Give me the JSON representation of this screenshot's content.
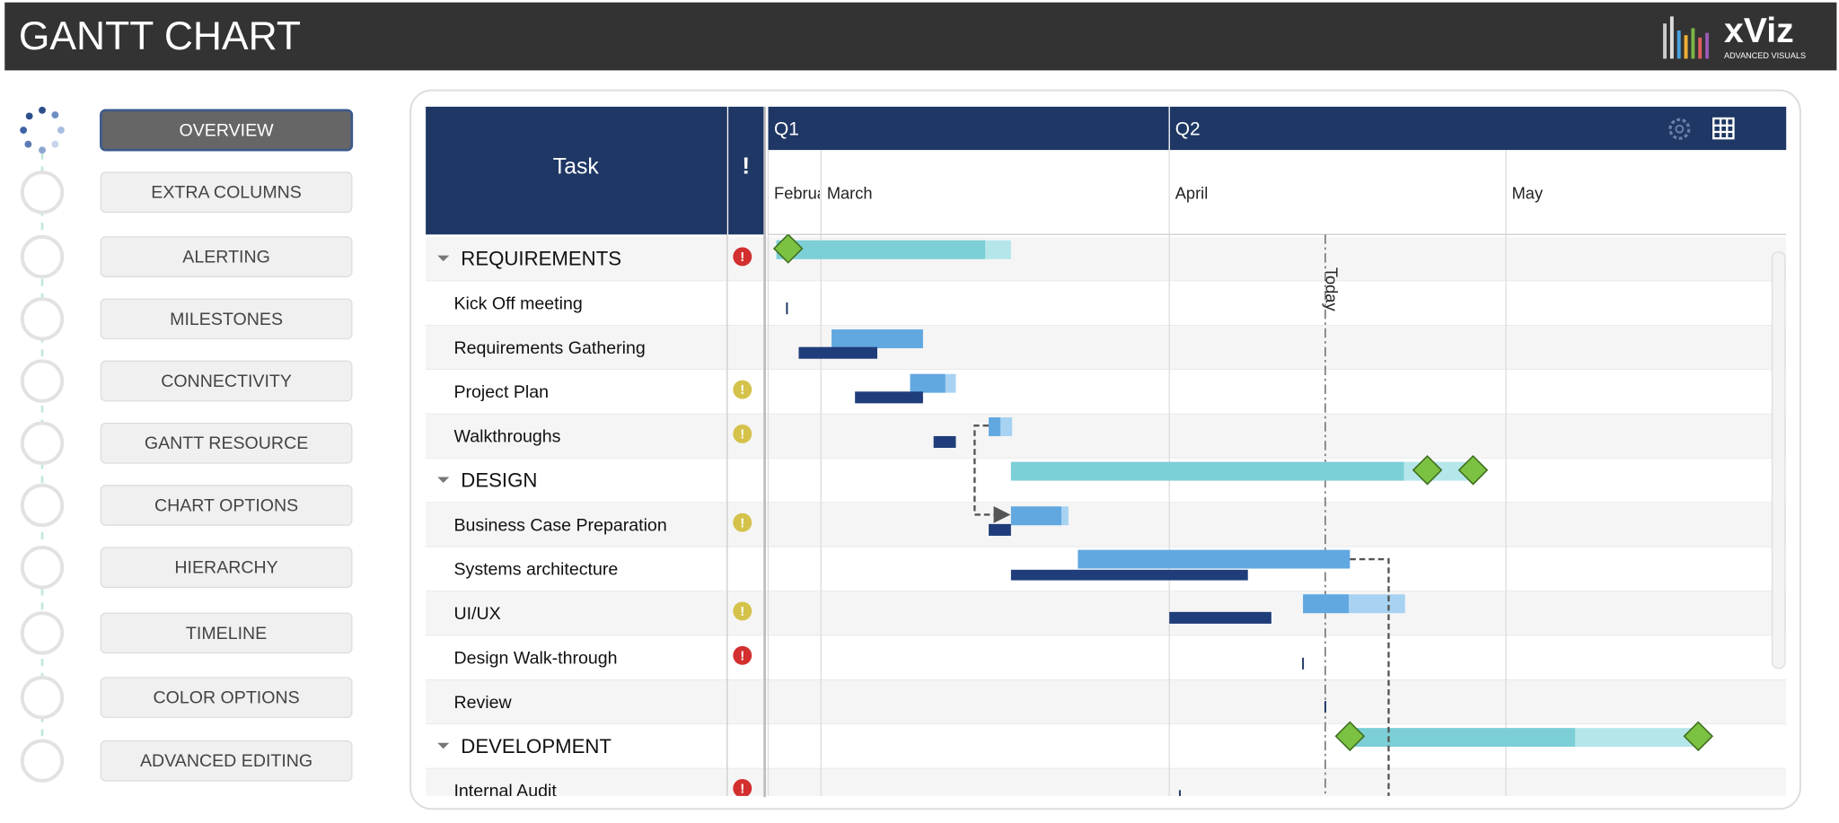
{
  "header": {
    "title": "GANTT CHART",
    "logo": "xViz",
    "logo_tagline": "ADVANCED VISUALS"
  },
  "nav": [
    "OVERVIEW",
    "EXTRA COLUMNS",
    "ALERTING",
    "MILESTONES",
    "CONNECTIVITY",
    "GANTT RESOURCE",
    "CHART OPTIONS",
    "HIERARCHY",
    "TIMELINE",
    "COLOR OPTIONS",
    "ADVANCED EDITING"
  ],
  "table": {
    "header": {
      "task": "Task",
      "alert": "!"
    },
    "rows": [
      {
        "task": "REQUIREMENTS"
      },
      {
        "task": "Kick Off meeting"
      },
      {
        "task": "Requirements Gathering"
      },
      {
        "task": "Project Plan"
      },
      {
        "task": "Walkthroughs"
      },
      {
        "task": "DESIGN"
      },
      {
        "task": "Business Case Preparation"
      },
      {
        "task": "Systems architecture"
      },
      {
        "task": "UI/UX"
      },
      {
        "task": "Design Walk-through"
      },
      {
        "task": "Review"
      },
      {
        "task": "DEVELOPMENT"
      },
      {
        "task": "Internal Audit"
      }
    ]
  },
  "timeline": {
    "quarters": [
      "Q1",
      "Q2"
    ],
    "months": [
      "February",
      "March",
      "April",
      "May"
    ]
  },
  "today": "Today"
}
